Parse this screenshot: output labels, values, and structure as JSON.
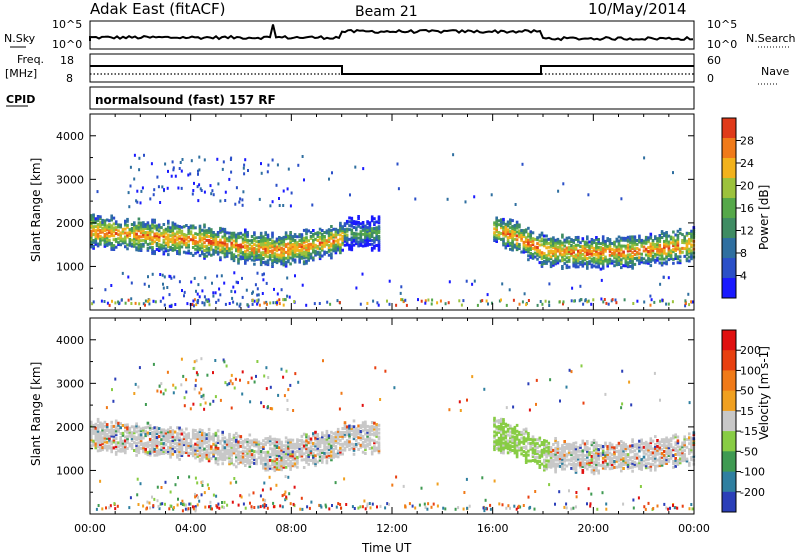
{
  "header": {
    "station": "Adak East (fitACF)",
    "beam": "Beam 21",
    "date": "10/May/2014"
  },
  "nsky_panel": {
    "label": "N.Sky",
    "right_label": "N.Search",
    "ticks_left": [
      "10^5",
      "10^0"
    ],
    "ticks_right": [
      "10^5",
      "10^0"
    ]
  },
  "freq_panel": {
    "label_line1": "Freq.",
    "label_line2": "[MHz]",
    "right_label": "Nave",
    "ticks_left": [
      "18",
      "8"
    ],
    "ticks_right": [
      "60",
      "0"
    ]
  },
  "cpid_panel": {
    "label": "CPID",
    "program": "normalsound (fast) 157 RF"
  },
  "chart_data": [
    {
      "type": "heatmap",
      "title": "",
      "parameter": "Power",
      "ylabel": "Slant Range [km]",
      "ylim": [
        0,
        4500
      ],
      "yticks": [
        "1000",
        "2000",
        "3000",
        "4000"
      ],
      "x_range": [
        "00:00",
        "24:00"
      ],
      "colorbar": {
        "label": "Power [dB]",
        "ticks": [
          "4",
          "8",
          "12",
          "16",
          "20",
          "24",
          "28"
        ]
      },
      "echo_bands": [
        {
          "t": [
            0,
            2,
            4,
            6,
            7.5,
            8.5,
            9.5,
            10
          ],
          "center_km": [
            1850,
            1750,
            1650,
            1500,
            1400,
            1500,
            1600,
            1700
          ]
        },
        {
          "t": [
            10,
            11.5
          ],
          "center_km": [
            1800,
            1800
          ]
        },
        {
          "t": [
            16,
            17,
            18,
            20,
            22,
            24
          ],
          "center_km": [
            1900,
            1700,
            1400,
            1350,
            1400,
            1550
          ]
        }
      ]
    },
    {
      "type": "heatmap",
      "title": "",
      "parameter": "Velocity",
      "ylabel": "Slant Range [km]",
      "ylim": [
        0,
        4500
      ],
      "yticks": [
        "1000",
        "2000",
        "3000",
        "4000"
      ],
      "x_range": [
        "00:00",
        "24:00"
      ],
      "colorbar": {
        "label": "Velocity [m s-1]",
        "ticks": [
          "200",
          "100",
          "50",
          "15",
          "-15",
          "-50",
          "-100",
          "-200"
        ]
      },
      "xticks": [
        "00:00",
        "04:00",
        "08:00",
        "12:00",
        "16:00",
        "20:00",
        "00:00"
      ],
      "xlabel": "Time UT"
    }
  ],
  "colors": {
    "power_scale": [
      "#1a1aff",
      "#2b50c8",
      "#2f6fa0",
      "#3f8c63",
      "#55a849",
      "#9cc23c",
      "#f2b21c",
      "#f07a1a",
      "#e03a1a"
    ],
    "velocity_scale": [
      "#2b3fb8",
      "#2f7fa0",
      "#3f9a52",
      "#88cc44",
      "#c8c8c8",
      "#f0a020",
      "#f07a18",
      "#e84010",
      "#e01010"
    ],
    "frame": "#000000"
  }
}
